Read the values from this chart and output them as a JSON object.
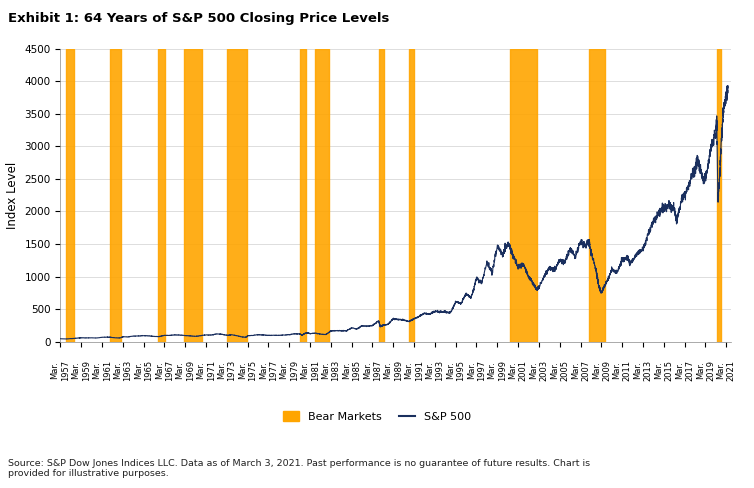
{
  "title": "Exhibit 1: 64 Years of S&P 500 Closing Price Levels",
  "ylabel": "Index Level",
  "source_text": "Source: S&P Dow Jones Indices LLC. Data as of March 3, 2021. Past performance is no guarantee of future results. Chart is\nprovided for illustrative purposes.",
  "line_color": "#1a2f5e",
  "bear_color": "#FFA500",
  "bear_alpha": 0.9,
  "ylim": [
    0,
    4500
  ],
  "yticks": [
    0,
    500,
    1000,
    1500,
    2000,
    2500,
    3000,
    3500,
    4000,
    4500
  ],
  "bear_markets": [
    [
      1957.5,
      1958.3
    ],
    [
      1961.8,
      1962.8
    ],
    [
      1966.4,
      1967.1
    ],
    [
      1968.9,
      1970.6
    ],
    [
      1973.0,
      1974.9
    ],
    [
      1980.0,
      1980.6
    ],
    [
      1981.5,
      1982.8
    ],
    [
      1987.6,
      1988.1
    ],
    [
      1990.5,
      1991.0
    ],
    [
      2000.2,
      2002.8
    ],
    [
      2007.8,
      2009.4
    ],
    [
      2020.1,
      2020.5
    ]
  ],
  "sp500_data": [
    [
      1957.0,
      44
    ],
    [
      1957.25,
      42
    ],
    [
      1957.5,
      40
    ],
    [
      1957.75,
      43
    ],
    [
      1958.0,
      46
    ],
    [
      1958.25,
      48
    ],
    [
      1958.5,
      51
    ],
    [
      1958.75,
      55
    ],
    [
      1959.0,
      59
    ],
    [
      1959.5,
      57
    ],
    [
      1960.0,
      58
    ],
    [
      1960.5,
      56
    ],
    [
      1961.0,
      66
    ],
    [
      1961.5,
      68
    ],
    [
      1961.8,
      67
    ],
    [
      1962.0,
      63
    ],
    [
      1962.5,
      56
    ],
    [
      1962.8,
      58
    ],
    [
      1963.0,
      75
    ],
    [
      1963.5,
      72
    ],
    [
      1964.0,
      84
    ],
    [
      1964.5,
      86
    ],
    [
      1965.0,
      92
    ],
    [
      1965.5,
      88
    ],
    [
      1966.0,
      80
    ],
    [
      1966.5,
      77
    ],
    [
      1967.0,
      96
    ],
    [
      1967.5,
      95
    ],
    [
      1968.0,
      103
    ],
    [
      1968.5,
      100
    ],
    [
      1969.0,
      92
    ],
    [
      1969.5,
      88
    ],
    [
      1970.0,
      80
    ],
    [
      1970.5,
      92
    ],
    [
      1971.0,
      102
    ],
    [
      1971.5,
      100
    ],
    [
      1972.0,
      118
    ],
    [
      1972.5,
      112
    ],
    [
      1973.0,
      97
    ],
    [
      1973.5,
      105
    ],
    [
      1974.0,
      90
    ],
    [
      1974.5,
      70
    ],
    [
      1974.9,
      68
    ],
    [
      1975.0,
      90
    ],
    [
      1975.5,
      95
    ],
    [
      1976.0,
      107
    ],
    [
      1976.5,
      102
    ],
    [
      1977.0,
      95
    ],
    [
      1977.5,
      97
    ],
    [
      1978.0,
      96
    ],
    [
      1978.5,
      100
    ],
    [
      1979.0,
      107
    ],
    [
      1979.5,
      120
    ],
    [
      1980.0,
      118
    ],
    [
      1980.25,
      100
    ],
    [
      1980.5,
      125
    ],
    [
      1980.75,
      135
    ],
    [
      1981.0,
      122
    ],
    [
      1981.5,
      130
    ],
    [
      1982.0,
      115
    ],
    [
      1982.5,
      108
    ],
    [
      1982.8,
      140
    ],
    [
      1983.0,
      164
    ],
    [
      1983.5,
      168
    ],
    [
      1984.0,
      167
    ],
    [
      1984.5,
      165
    ],
    [
      1985.0,
      211
    ],
    [
      1985.5,
      195
    ],
    [
      1986.0,
      242
    ],
    [
      1986.5,
      238
    ],
    [
      1987.0,
      247
    ],
    [
      1987.6,
      320
    ],
    [
      1987.75,
      230
    ],
    [
      1988.0,
      250
    ],
    [
      1988.5,
      265
    ],
    [
      1989.0,
      353
    ],
    [
      1989.5,
      340
    ],
    [
      1990.0,
      330
    ],
    [
      1990.5,
      310
    ],
    [
      1991.0,
      350
    ],
    [
      1991.5,
      390
    ],
    [
      1992.0,
      435
    ],
    [
      1992.5,
      420
    ],
    [
      1993.0,
      466
    ],
    [
      1993.5,
      455
    ],
    [
      1994.0,
      459
    ],
    [
      1994.5,
      440
    ],
    [
      1995.0,
      615
    ],
    [
      1995.5,
      580
    ],
    [
      1996.0,
      741
    ],
    [
      1996.5,
      670
    ],
    [
      1997.0,
      970
    ],
    [
      1997.5,
      900
    ],
    [
      1998.0,
      1229
    ],
    [
      1998.5,
      1050
    ],
    [
      1999.0,
      1469
    ],
    [
      1999.5,
      1350
    ],
    [
      2000.0,
      1498
    ],
    [
      2000.25,
      1450
    ],
    [
      2000.5,
      1320
    ],
    [
      2001.0,
      1148
    ],
    [
      2001.5,
      1200
    ],
    [
      2002.0,
      1000
    ],
    [
      2002.5,
      880
    ],
    [
      2002.8,
      800
    ],
    [
      2003.0,
      848
    ],
    [
      2003.5,
      1000
    ],
    [
      2004.0,
      1130
    ],
    [
      2004.5,
      1100
    ],
    [
      2005.0,
      1248
    ],
    [
      2005.5,
      1220
    ],
    [
      2006.0,
      1418
    ],
    [
      2006.5,
      1310
    ],
    [
      2007.0,
      1530
    ],
    [
      2007.5,
      1468
    ],
    [
      2007.8,
      1550
    ],
    [
      2008.0,
      1380
    ],
    [
      2008.5,
      1100
    ],
    [
      2008.75,
      850
    ],
    [
      2009.0,
      750
    ],
    [
      2009.4,
      880
    ],
    [
      2009.75,
      1000
    ],
    [
      2010.0,
      1115
    ],
    [
      2010.5,
      1050
    ],
    [
      2011.0,
      1257
    ],
    [
      2011.5,
      1300
    ],
    [
      2011.75,
      1200
    ],
    [
      2012.0,
      1258
    ],
    [
      2012.5,
      1360
    ],
    [
      2013.0,
      1426
    ],
    [
      2013.5,
      1650
    ],
    [
      2014.0,
      1848
    ],
    [
      2014.5,
      1960
    ],
    [
      2015.0,
      2059
    ],
    [
      2015.5,
      2100
    ],
    [
      2016.0,
      2044
    ],
    [
      2016.25,
      1850
    ],
    [
      2016.75,
      2200
    ],
    [
      2017.0,
      2239
    ],
    [
      2017.5,
      2450
    ],
    [
      2018.0,
      2674
    ],
    [
      2018.25,
      2800
    ],
    [
      2018.75,
      2500
    ],
    [
      2019.0,
      2507
    ],
    [
      2019.5,
      2950
    ],
    [
      2020.0,
      3231
    ],
    [
      2020.1,
      3380
    ],
    [
      2020.2,
      2200
    ],
    [
      2020.4,
      2600
    ],
    [
      2020.5,
      3000
    ],
    [
      2020.75,
      3600
    ],
    [
      2021.0,
      3756
    ],
    [
      2021.17,
      3900
    ]
  ],
  "xtick_years": [
    1957,
    1959,
    1961,
    1963,
    1965,
    1967,
    1969,
    1971,
    1973,
    1975,
    1977,
    1979,
    1981,
    1983,
    1985,
    1987,
    1989,
    1991,
    1993,
    1995,
    1997,
    1999,
    2001,
    2003,
    2005,
    2007,
    2009,
    2011,
    2013,
    2015,
    2017,
    2019,
    2021
  ],
  "background_color": "#ffffff",
  "grid_color": "#d0d0d0"
}
